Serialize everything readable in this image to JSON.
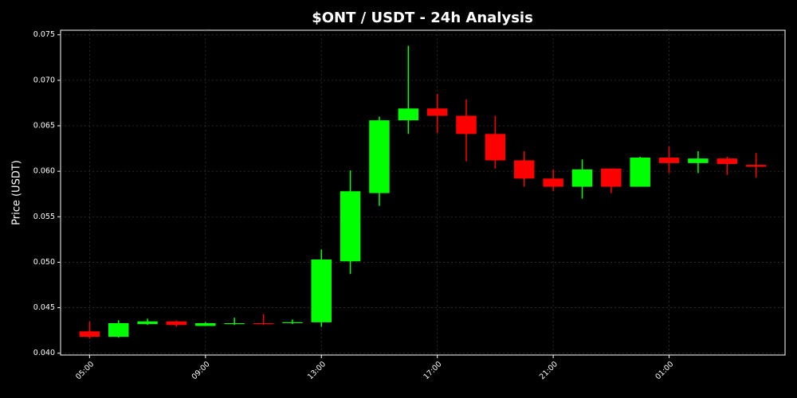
{
  "chart_data": {
    "type": "candlestick",
    "title": "$ONT / USDT - 24h Analysis",
    "y_label": "Price (USDT)",
    "categories": [
      "05:00",
      null,
      null,
      null,
      "09:00",
      null,
      null,
      null,
      "13:00",
      null,
      null,
      null,
      "17:00",
      null,
      null,
      null,
      "21:00",
      null,
      null,
      null,
      "01:00",
      null,
      null,
      null
    ],
    "open": [
      0.0424,
      0.0418,
      0.0432,
      0.0435,
      0.043,
      0.0432,
      0.0433,
      0.0433,
      0.0434,
      0.0501,
      0.0576,
      0.0656,
      0.0669,
      0.0661,
      0.0641,
      0.0612,
      0.0592,
      0.0583,
      0.0603,
      0.0583,
      0.0615,
      0.0609,
      0.0614,
      0.0607
    ],
    "high": [
      0.0435,
      0.0436,
      0.0438,
      0.0436,
      0.0434,
      0.0439,
      0.0443,
      0.0437,
      0.0514,
      0.0601,
      0.066,
      0.0738,
      0.0685,
      0.0679,
      0.0661,
      0.0622,
      0.0602,
      0.0613,
      0.0603,
      0.0616,
      0.0627,
      0.0622,
      0.0616,
      0.062
    ],
    "low": [
      0.0416,
      0.0417,
      0.0431,
      0.0429,
      0.043,
      0.0431,
      0.0431,
      0.0432,
      0.0429,
      0.0487,
      0.0562,
      0.0641,
      0.0642,
      0.0611,
      0.0603,
      0.0583,
      0.0578,
      0.057,
      0.0576,
      0.0583,
      0.0598,
      0.0598,
      0.0596,
      0.0593
    ],
    "close": [
      0.0418,
      0.0433,
      0.0435,
      0.0431,
      0.0433,
      0.0433,
      0.0432,
      0.0434,
      0.0503,
      0.0578,
      0.0656,
      0.0669,
      0.0661,
      0.0641,
      0.0612,
      0.0592,
      0.0583,
      0.0602,
      0.0583,
      0.0615,
      0.0609,
      0.0614,
      0.0608,
      0.0605
    ],
    "up_color": "#00ff00",
    "down_color": "#ff0000",
    "ylim": [
      0.0398,
      0.0755
    ],
    "yticks": [
      {
        "value": 0.04,
        "label": "0.040"
      },
      {
        "value": 0.045,
        "label": "0.045"
      },
      {
        "value": 0.05,
        "label": "0.050"
      },
      {
        "value": 0.055,
        "label": "0.055"
      },
      {
        "value": 0.06,
        "label": "0.060"
      },
      {
        "value": 0.065,
        "label": "0.065"
      },
      {
        "value": 0.07,
        "label": "0.070"
      },
      {
        "value": 0.075,
        "label": "0.075"
      }
    ],
    "grid": true
  }
}
